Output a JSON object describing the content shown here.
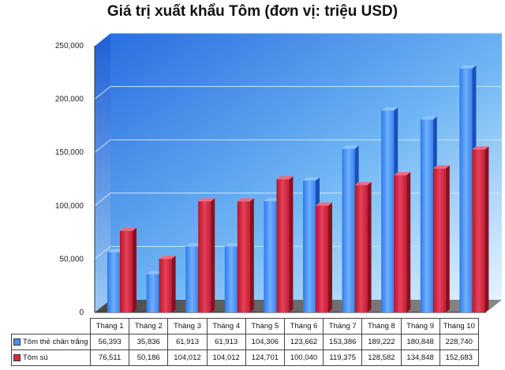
{
  "chart_data": {
    "type": "bar",
    "title": "Giá trị xuất khẩu Tôm (đơn vị: triệu USD)",
    "categories": [
      "Tháng 1",
      "Tháng 2",
      "Tháng 3",
      "Tháng 4",
      "Tháng 5",
      "Tháng 6",
      "Tháng 7",
      "Tháng 8",
      "Tháng 9",
      "Tháng 10"
    ],
    "series": [
      {
        "name": "Tôm thẻ chân trắng",
        "color": "#4a90f0",
        "values": [
          56393,
          35836,
          61913,
          61913,
          104306,
          123662,
          153386,
          189222,
          180848,
          228740
        ],
        "labels": [
          "56,393",
          "35,836",
          "61,913",
          "61,913",
          "104,306",
          "123,662",
          "153,386",
          "189,222",
          "180,848",
          "228,740"
        ]
      },
      {
        "name": "Tôm sú",
        "color": "#d8283c",
        "values": [
          76511,
          50186,
          104012,
          104012,
          124701,
          100040,
          119375,
          128582,
          134848,
          152683
        ],
        "labels": [
          "76,511",
          "50,186",
          "104,012",
          "104,012",
          "124,701",
          "100,040",
          "119,375",
          "128,582",
          "134,848",
          "152,683"
        ]
      }
    ],
    "ylim": [
      0,
      250000
    ],
    "yticks": [
      0,
      50000,
      100000,
      150000,
      200000,
      250000
    ],
    "ytick_labels": [
      "0",
      "50,000",
      "100,000",
      "150,000",
      "200,000",
      "250,000"
    ],
    "xlabel": "",
    "ylabel": "",
    "grid": true,
    "legend": "data-table"
  }
}
